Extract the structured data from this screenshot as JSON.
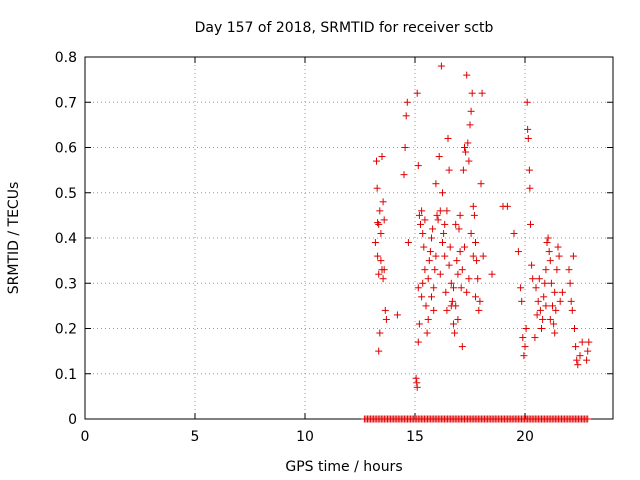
{
  "chart_data": {
    "type": "scatter",
    "title": "Day 157 of 2018, SRMTID for receiver sctb",
    "xlabel": "GPS time / hours",
    "ylabel": "SRMTID / TECUs",
    "xlim": [
      0,
      24
    ],
    "ylim": [
      0,
      0.8
    ],
    "xticks": [
      "0",
      "5",
      "10",
      "15",
      "20"
    ],
    "xtick_values": [
      0,
      5,
      10,
      15,
      20
    ],
    "yticks": [
      "0",
      "0.1",
      "0.2",
      "0.3",
      "0.4",
      "0.5",
      "0.6",
      "0.7",
      "0.8"
    ],
    "ytick_values": [
      0,
      0.1,
      0.2,
      0.3,
      0.4,
      0.5,
      0.6,
      0.7,
      0.8
    ],
    "grid": true,
    "marker": "+",
    "color": "#e00000",
    "series": [
      {
        "name": "SRMTID",
        "points": [
          [
            13.25,
            0.57
          ],
          [
            13.3,
            0.434
          ],
          [
            13.35,
            0.43
          ],
          [
            13.4,
            0.46
          ],
          [
            13.45,
            0.41
          ],
          [
            13.5,
            0.58
          ],
          [
            13.55,
            0.48
          ],
          [
            13.3,
            0.36
          ],
          [
            13.35,
            0.32
          ],
          [
            13.6,
            0.33
          ],
          [
            13.65,
            0.24
          ],
          [
            13.7,
            0.22
          ],
          [
            13.4,
            0.19
          ],
          [
            13.35,
            0.15
          ],
          [
            13.5,
            0.33
          ],
          [
            13.55,
            0.31
          ],
          [
            13.2,
            0.39
          ],
          [
            13.28,
            0.51
          ],
          [
            13.45,
            0.35
          ],
          [
            13.6,
            0.44
          ],
          [
            14.2,
            0.23
          ],
          [
            14.5,
            0.54
          ],
          [
            14.6,
            0.67
          ],
          [
            14.65,
            0.7
          ],
          [
            14.55,
            0.6
          ],
          [
            14.7,
            0.39
          ],
          [
            15.1,
            0.72
          ],
          [
            15.15,
            0.56
          ],
          [
            15.2,
            0.45
          ],
          [
            15.25,
            0.43
          ],
          [
            15.3,
            0.46
          ],
          [
            15.05,
            0.09
          ],
          [
            15.08,
            0.08
          ],
          [
            15.1,
            0.07
          ],
          [
            15.15,
            0.17
          ],
          [
            15.2,
            0.21
          ],
          [
            15.3,
            0.27
          ],
          [
            15.35,
            0.3
          ],
          [
            15.4,
            0.38
          ],
          [
            15.45,
            0.33
          ],
          [
            15.5,
            0.25
          ],
          [
            15.55,
            0.19
          ],
          [
            15.6,
            0.22
          ],
          [
            15.65,
            0.35
          ],
          [
            15.7,
            0.37
          ],
          [
            15.75,
            0.4
          ],
          [
            15.8,
            0.42
          ],
          [
            15.85,
            0.29
          ],
          [
            15.9,
            0.33
          ],
          [
            15.95,
            0.52
          ],
          [
            16.0,
            0.45
          ],
          [
            16.05,
            0.44
          ],
          [
            16.1,
            0.58
          ],
          [
            16.15,
            0.46
          ],
          [
            16.2,
            0.78
          ],
          [
            16.25,
            0.5
          ],
          [
            16.3,
            0.41
          ],
          [
            16.35,
            0.36
          ],
          [
            16.4,
            0.28
          ],
          [
            16.45,
            0.24
          ],
          [
            16.5,
            0.62
          ],
          [
            16.55,
            0.55
          ],
          [
            16.6,
            0.38
          ],
          [
            16.65,
            0.3
          ],
          [
            16.7,
            0.26
          ],
          [
            16.75,
            0.21
          ],
          [
            16.8,
            0.19
          ],
          [
            16.85,
            0.25
          ],
          [
            16.9,
            0.35
          ],
          [
            16.95,
            0.32
          ],
          [
            17.0,
            0.42
          ],
          [
            17.05,
            0.45
          ],
          [
            17.1,
            0.29
          ],
          [
            17.15,
            0.16
          ],
          [
            17.2,
            0.55
          ],
          [
            17.25,
            0.6
          ],
          [
            17.3,
            0.59
          ],
          [
            17.35,
            0.76
          ],
          [
            17.4,
            0.61
          ],
          [
            17.45,
            0.57
          ],
          [
            17.5,
            0.65
          ],
          [
            17.55,
            0.68
          ],
          [
            17.6,
            0.72
          ],
          [
            17.65,
            0.47
          ],
          [
            17.7,
            0.45
          ],
          [
            17.75,
            0.39
          ],
          [
            17.8,
            0.35
          ],
          [
            17.85,
            0.31
          ],
          [
            17.9,
            0.24
          ],
          [
            17.95,
            0.26
          ],
          [
            18.0,
            0.52
          ],
          [
            18.05,
            0.72
          ],
          [
            18.1,
            0.36
          ],
          [
            18.5,
            0.32
          ],
          [
            19.0,
            0.47
          ],
          [
            19.2,
            0.47
          ],
          [
            19.5,
            0.41
          ],
          [
            19.7,
            0.37
          ],
          [
            19.8,
            0.29
          ],
          [
            19.85,
            0.26
          ],
          [
            19.9,
            0.18
          ],
          [
            19.95,
            0.14
          ],
          [
            20.0,
            0.16
          ],
          [
            20.05,
            0.2
          ],
          [
            20.1,
            0.7
          ],
          [
            20.12,
            0.64
          ],
          [
            20.15,
            0.62
          ],
          [
            20.2,
            0.55
          ],
          [
            20.22,
            0.51
          ],
          [
            20.25,
            0.43
          ],
          [
            20.3,
            0.34
          ],
          [
            20.35,
            0.31
          ],
          [
            20.5,
            0.29
          ],
          [
            20.6,
            0.26
          ],
          [
            20.7,
            0.24
          ],
          [
            20.75,
            0.2
          ],
          [
            20.8,
            0.22
          ],
          [
            20.85,
            0.27
          ],
          [
            20.9,
            0.3
          ],
          [
            20.95,
            0.33
          ],
          [
            21.0,
            0.39
          ],
          [
            21.05,
            0.4
          ],
          [
            21.1,
            0.37
          ],
          [
            21.15,
            0.35
          ],
          [
            21.2,
            0.3
          ],
          [
            21.25,
            0.25
          ],
          [
            21.3,
            0.21
          ],
          [
            21.35,
            0.19
          ],
          [
            21.4,
            0.24
          ],
          [
            21.45,
            0.33
          ],
          [
            21.5,
            0.38
          ],
          [
            21.55,
            0.36
          ],
          [
            21.6,
            0.26
          ],
          [
            21.7,
            0.28
          ],
          [
            22.0,
            0.33
          ],
          [
            22.05,
            0.3
          ],
          [
            22.1,
            0.26
          ],
          [
            22.15,
            0.24
          ],
          [
            22.2,
            0.36
          ],
          [
            22.25,
            0.2
          ],
          [
            22.3,
            0.16
          ],
          [
            22.35,
            0.13
          ],
          [
            22.4,
            0.12
          ],
          [
            22.5,
            0.14
          ],
          [
            22.6,
            0.17
          ],
          [
            22.8,
            0.13
          ],
          [
            22.85,
            0.15
          ],
          [
            22.9,
            0.17
          ],
          [
            15.6,
            0.31
          ],
          [
            15.75,
            0.27
          ],
          [
            15.95,
            0.36
          ],
          [
            16.15,
            0.32
          ],
          [
            16.35,
            0.43
          ],
          [
            16.55,
            0.34
          ],
          [
            16.75,
            0.29
          ],
          [
            16.95,
            0.22
          ],
          [
            17.15,
            0.33
          ],
          [
            17.35,
            0.28
          ],
          [
            17.55,
            0.41
          ],
          [
            17.75,
            0.27
          ],
          [
            15.45,
            0.44
          ],
          [
            15.85,
            0.24
          ],
          [
            16.25,
            0.39
          ],
          [
            16.65,
            0.25
          ],
          [
            17.05,
            0.37
          ],
          [
            17.45,
            0.31
          ],
          [
            20.55,
            0.23
          ],
          [
            20.65,
            0.31
          ],
          [
            20.95,
            0.25
          ],
          [
            21.15,
            0.22
          ],
          [
            21.35,
            0.28
          ],
          [
            20.45,
            0.18
          ],
          [
            15.15,
            0.29
          ],
          [
            15.35,
            0.41
          ],
          [
            16.45,
            0.46
          ],
          [
            16.85,
            0.43
          ],
          [
            17.25,
            0.38
          ],
          [
            17.65,
            0.36
          ]
        ],
        "zero_baseline_x_range": [
          12.7,
          22.9
        ]
      }
    ]
  }
}
